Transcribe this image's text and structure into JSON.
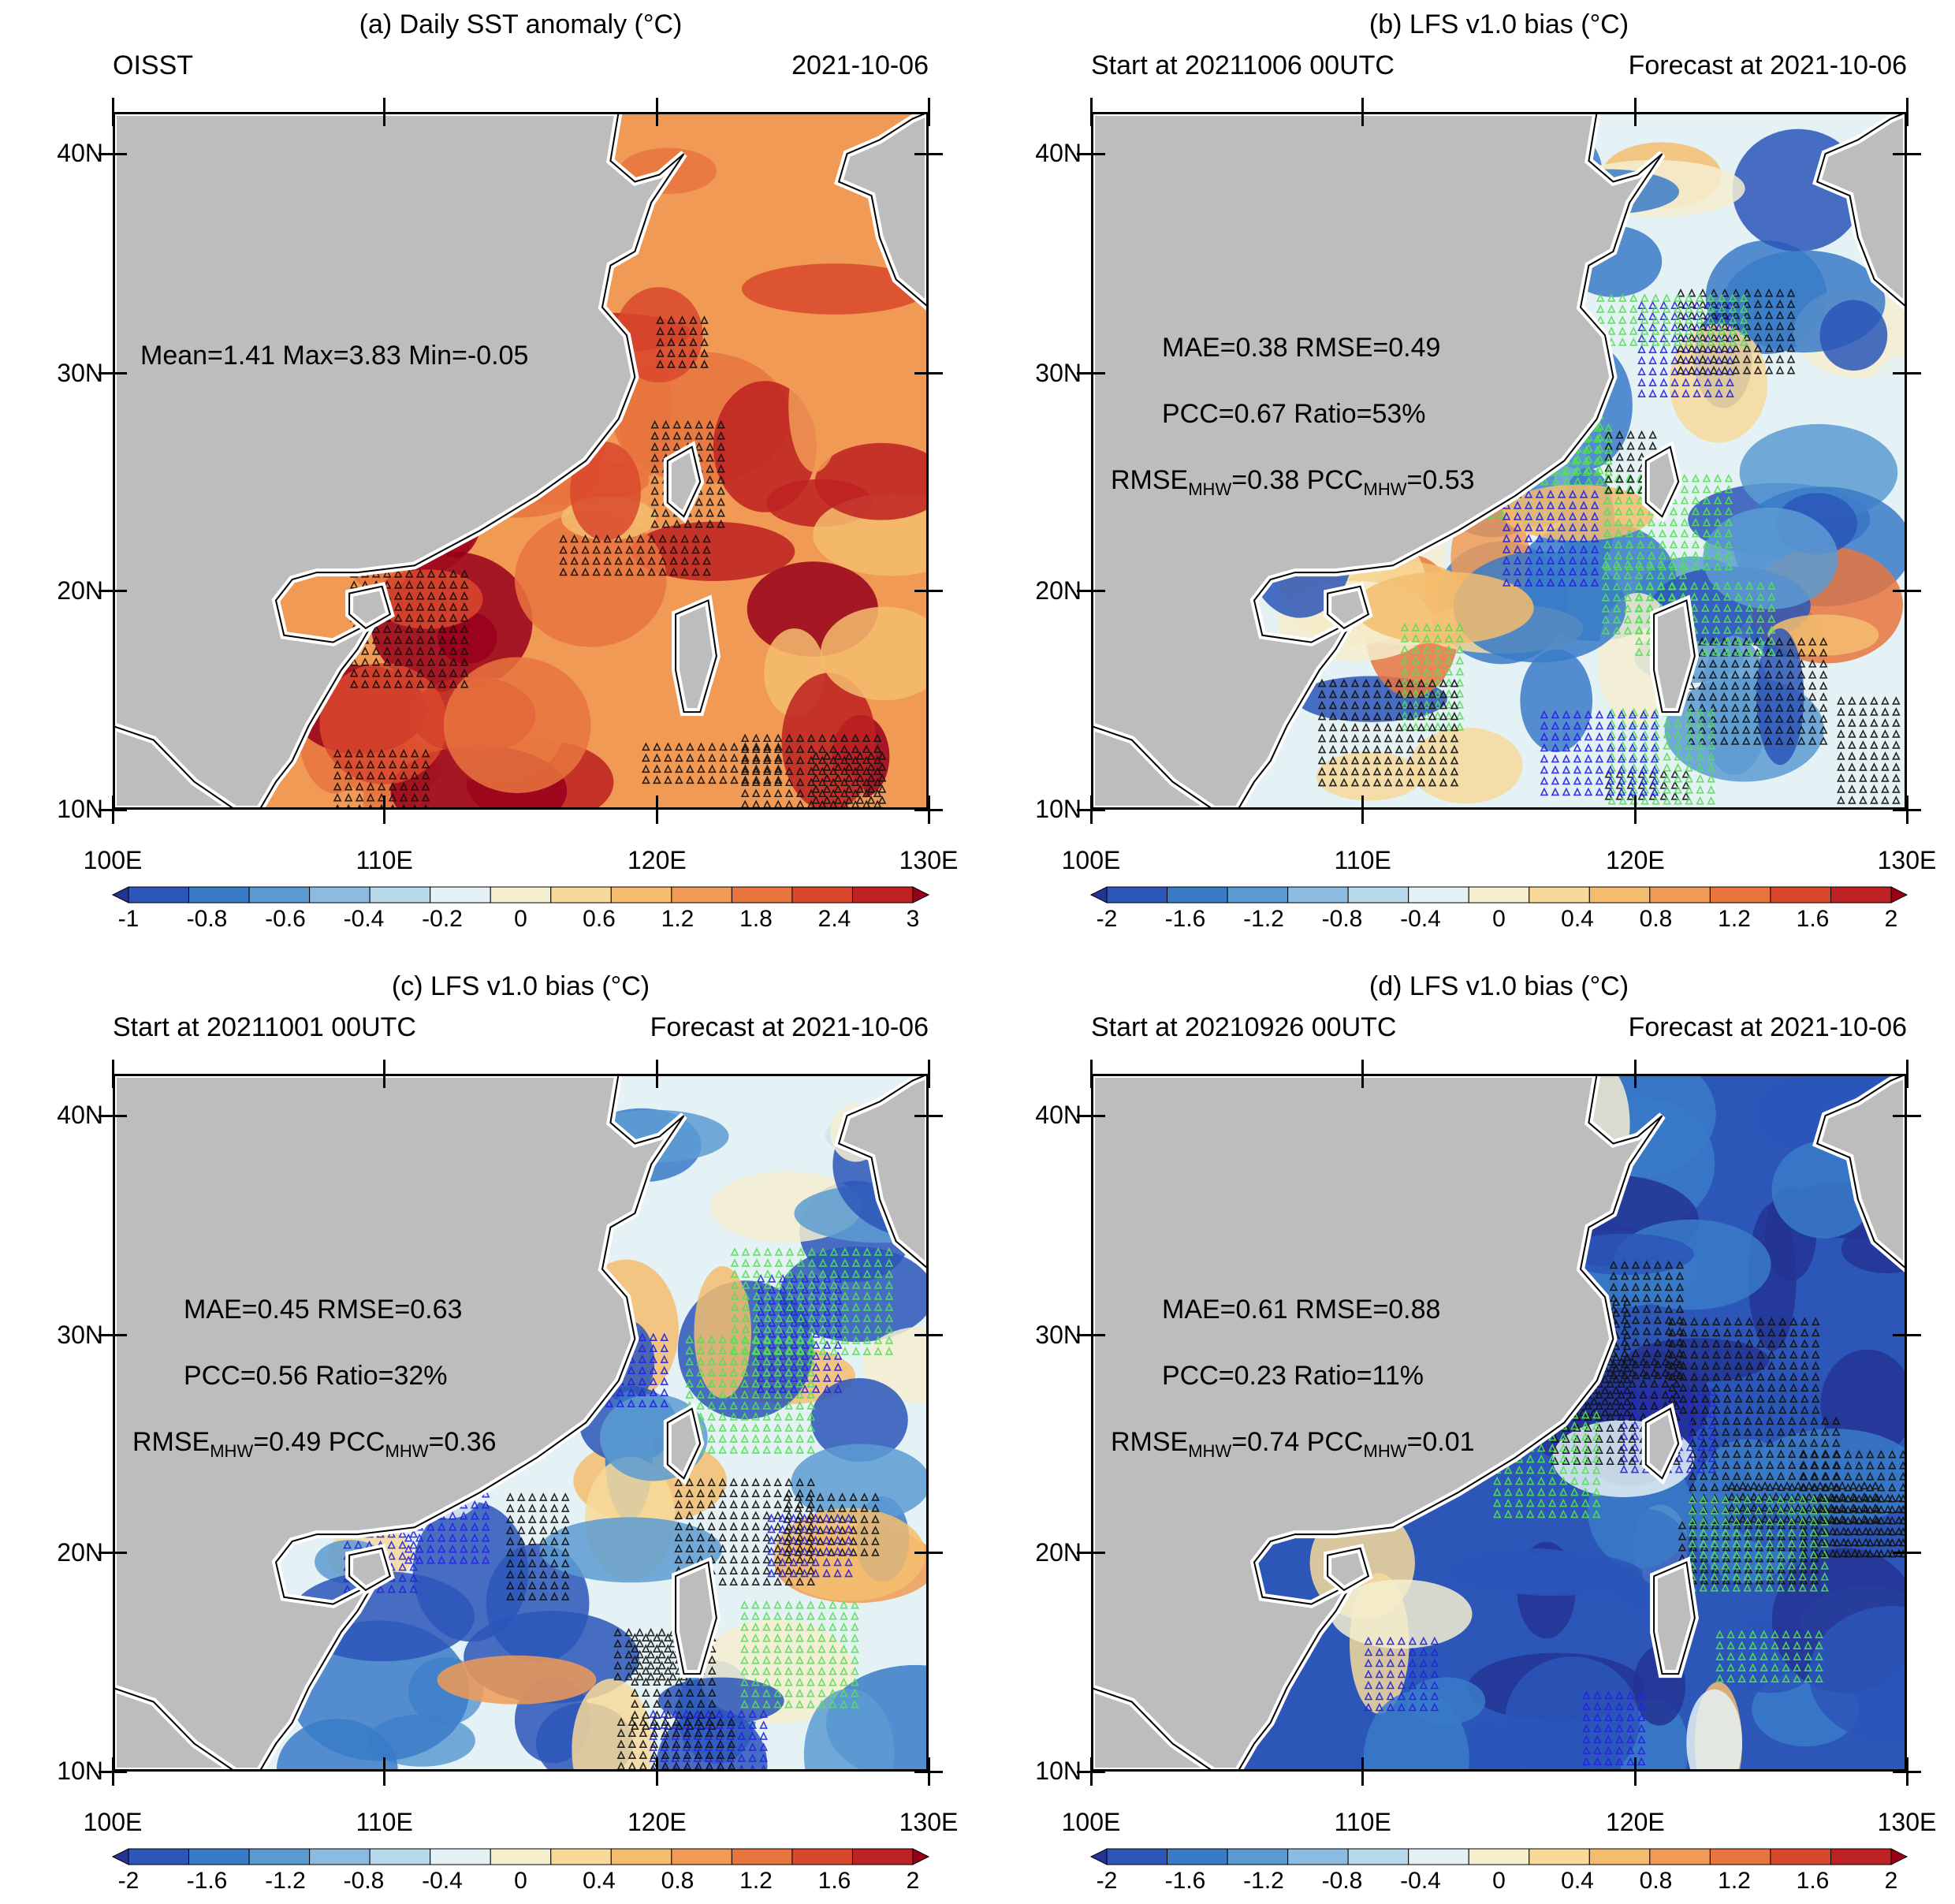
{
  "colors": {
    "land": "#bdbdbd",
    "coast": "#ffffff",
    "hatch_black": "#111111",
    "hatch_blue": "#2424e0",
    "hatch_green": "#55e055",
    "palette": [
      "#253494",
      "#2c56b8",
      "#3a7bc8",
      "#5c9bd1",
      "#8bbbe0",
      "#b8d8ec",
      "#e4f1f5",
      "#f5efd0",
      "#f7d99a",
      "#f4bd6e",
      "#f09a55",
      "#e8743e",
      "#d9482d",
      "#bd2121",
      "#98001a"
    ]
  },
  "panels": [
    {
      "id": "a",
      "title": "(a) Daily SST anomaly (°C)",
      "left": "OISST",
      "right": "2021-10-06",
      "stats": [
        "Mean=1.41  Max=3.83  Min=-0.05"
      ],
      "mhw": null,
      "cbar_labels": [
        "-1",
        "-0.8",
        "-0.6",
        "-0.4",
        "-0.2",
        "0",
        "0.6",
        "1.2",
        "1.8",
        "2.4",
        "3"
      ]
    },
    {
      "id": "b",
      "title": "(b) LFS v1.0 bias (°C)",
      "left": "Start at 20211006 00UTC",
      "right": "Forecast at 2021-10-06",
      "stats": [
        "MAE=0.38  RMSE=0.49",
        "PCC=0.67  Ratio=53%"
      ],
      "mhw": {
        "rmse": "RMSE",
        "sub": "MHW",
        "rmse_val": "=0.38  ",
        "pcc": "PCC",
        "pcc_val": "=0.53"
      },
      "cbar_labels": [
        "-2",
        "-1.6",
        "-1.2",
        "-0.8",
        "-0.4",
        "0",
        "0.4",
        "0.8",
        "1.2",
        "1.6",
        "2"
      ]
    },
    {
      "id": "c",
      "title": "(c) LFS v1.0 bias (°C)",
      "left": "Start at 20211001 00UTC",
      "right": "Forecast at 2021-10-06",
      "stats": [
        "MAE=0.45  RMSE=0.63",
        "PCC=0.56  Ratio=32%"
      ],
      "mhw": {
        "rmse": "RMSE",
        "sub": "MHW",
        "rmse_val": "=0.49  ",
        "pcc": "PCC",
        "pcc_val": "=0.36"
      },
      "cbar_labels": [
        "-2",
        "-1.6",
        "-1.2",
        "-0.8",
        "-0.4",
        "0",
        "0.4",
        "0.8",
        "1.2",
        "1.6",
        "2"
      ]
    },
    {
      "id": "d",
      "title": "(d) LFS v1.0 bias (°C)",
      "left": "Start at 20210926 00UTC",
      "right": "Forecast at 2021-10-06",
      "stats": [
        "MAE=0.61  RMSE=0.88",
        "PCC=0.23  Ratio=11%"
      ],
      "mhw": {
        "rmse": "RMSE",
        "sub": "MHW",
        "rmse_val": "=0.74  ",
        "pcc": "PCC",
        "pcc_val": "=0.01"
      },
      "cbar_labels": [
        "-2",
        "-1.6",
        "-1.2",
        "-0.8",
        "-0.4",
        "0",
        "0.4",
        "0.8",
        "1.2",
        "1.6",
        "2"
      ]
    }
  ],
  "axes": {
    "lat_labels": [
      "40N",
      "30N",
      "20N",
      "10N"
    ],
    "lon_labels": [
      "100E",
      "110E",
      "120E",
      "130E"
    ]
  }
}
